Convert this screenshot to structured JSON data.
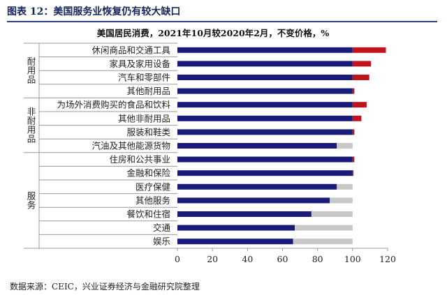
{
  "header": {
    "title": "图表 12：美国服务业恢复仍有较大缺口"
  },
  "footer": {
    "source": "数据来源：CEIC，兴业证券经济与金融研究院整理"
  },
  "chart_data": {
    "type": "bar",
    "orientation": "horizontal",
    "title": "美国居民消费，2021年10月较2020年2月，不变价格，%",
    "xlim": [
      0,
      120
    ],
    "xticks": [
      0,
      20,
      40,
      60,
      80,
      100,
      120
    ],
    "groups": [
      {
        "label": "耐用品",
        "categories": [
          "休闲商品和交通工具",
          "家具及家用设备",
          "汽车和零部件",
          "其他耐用品"
        ]
      },
      {
        "label": "非耐用品",
        "categories": [
          "为场外消费购买的食品和饮料",
          "其他非耐用品",
          "服装和鞋类",
          "汽油及其他能源货物"
        ]
      },
      {
        "label": "服务",
        "categories": [
          "住房和公共事业",
          "金融和保险",
          "医疗保健",
          "其他服务",
          "餐饮和住宿",
          "交通",
          "娱乐"
        ]
      }
    ],
    "categories": [
      "休闲商品和交通工具",
      "家具及家用设备",
      "汽车和零部件",
      "其他耐用品",
      "为场外消费购买的食品和饮料",
      "其他非耐用品",
      "服装和鞋类",
      "汽油及其他能源货物",
      "住房和公共事业",
      "金融和保险",
      "医疗保健",
      "其他服务",
      "餐饮和住宿",
      "交通",
      "娱乐"
    ],
    "values": [
      119,
      110.5,
      109.5,
      101,
      108,
      105,
      101,
      91,
      101,
      100.5,
      91,
      87,
      76.5,
      67,
      66
    ],
    "colors": {
      "navy": "#1a1a78",
      "red": "#c0141c",
      "gray": "#c8c8c8"
    }
  }
}
